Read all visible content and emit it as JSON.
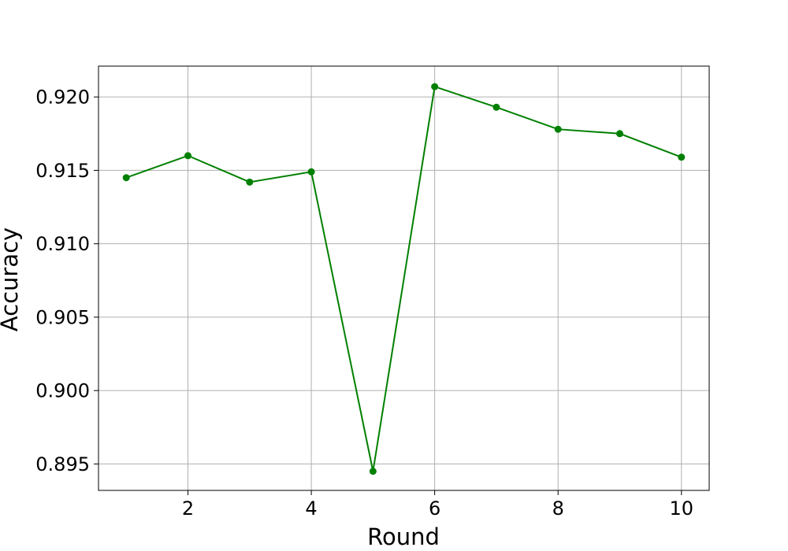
{
  "chart_data": {
    "type": "line",
    "title": "",
    "xlabel": "Round",
    "ylabel": "Accuracy",
    "xlim": [
      0.55,
      10.45
    ],
    "ylim": [
      0.8932,
      0.9221
    ],
    "grid": true,
    "legend": "none",
    "x_ticks": [
      2,
      4,
      6,
      8,
      10
    ],
    "x_tick_labels": [
      "2",
      "4",
      "6",
      "8",
      "10"
    ],
    "y_ticks": [
      0.895,
      0.9,
      0.905,
      0.91,
      0.915,
      0.92
    ],
    "y_tick_labels": [
      "0.895",
      "0.900",
      "0.905",
      "0.910",
      "0.915",
      "0.920"
    ],
    "series": [
      {
        "color": "#008000",
        "marker": "circle",
        "x": [
          1,
          2,
          3,
          4,
          5,
          6,
          7,
          8,
          9,
          10
        ],
        "y": [
          0.9145,
          0.916,
          0.9142,
          0.9149,
          0.8945,
          0.9207,
          0.9193,
          0.9178,
          0.9175,
          0.9159
        ]
      }
    ]
  }
}
